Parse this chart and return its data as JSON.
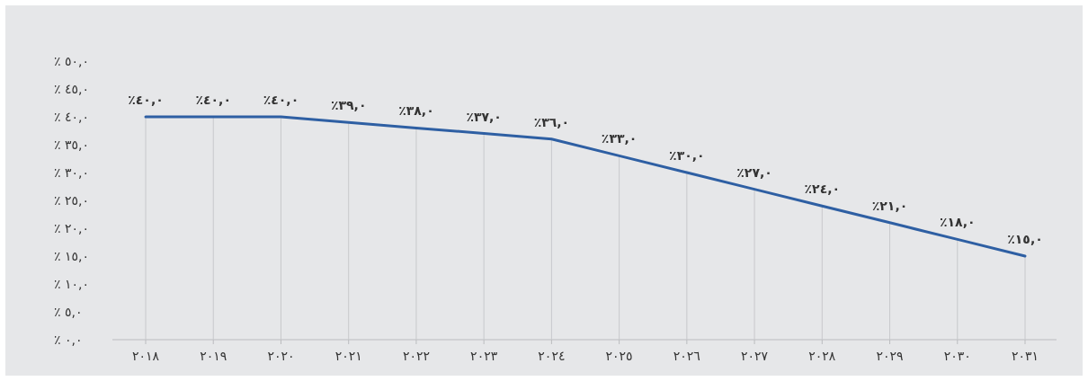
{
  "chart_data": {
    "type": "line",
    "categories": [
      "٢٠١٨",
      "٢٠١٩",
      "٢٠٢٠",
      "٢٠٢١",
      "٢٠٢٢",
      "٢٠٢٣",
      "٢٠٢٤",
      "٢٠٢٥",
      "٢٠٢٦",
      "٢٠٢٧",
      "٢٠٢٨",
      "٢٠٢٩",
      "٢٠٣٠",
      "٢٠٣١"
    ],
    "series": [
      {
        "color": "#2e5fa3",
        "values": [
          40,
          40,
          40,
          39,
          38,
          37,
          36,
          33,
          30,
          27,
          24,
          21,
          18,
          15
        ],
        "value_labels": [
          "٪٤٠,٠",
          "٪٤٠,٠",
          "٪٤٠,٠",
          "٪٣٩,٠",
          "٪٣٨,٠",
          "٪٣٧,٠",
          "٪٣٦,٠",
          "٪٣٣,٠",
          "٪٣٠,٠",
          "٪٢٧,٠",
          "٪٢٤,٠",
          "٪٢١,٠",
          "٪١٨,٠",
          "٪١٥,٠"
        ]
      }
    ],
    "ylim": [
      0,
      50
    ],
    "yticks": [
      {
        "value": 0,
        "label": "٪ ٠,٠"
      },
      {
        "value": 5,
        "label": "٪ ٥,٠"
      },
      {
        "value": 10,
        "label": "٪ ١٠,٠"
      },
      {
        "value": 15,
        "label": "٪ ١٥,٠"
      },
      {
        "value": 20,
        "label": "٪ ٢٠,٠"
      },
      {
        "value": 25,
        "label": "٪ ٢٥,٠"
      },
      {
        "value": 30,
        "label": "٪ ٣٠,٠"
      },
      {
        "value": 35,
        "label": "٪ ٣٥,٠"
      },
      {
        "value": 40,
        "label": "٪ ٤٠,٠"
      },
      {
        "value": 45,
        "label": "٪ ٤٥,٠"
      },
      {
        "value": 50,
        "label": "٪ ٥٠,٠"
      }
    ],
    "grid": "x",
    "marker": "none",
    "line_style": "solid"
  }
}
